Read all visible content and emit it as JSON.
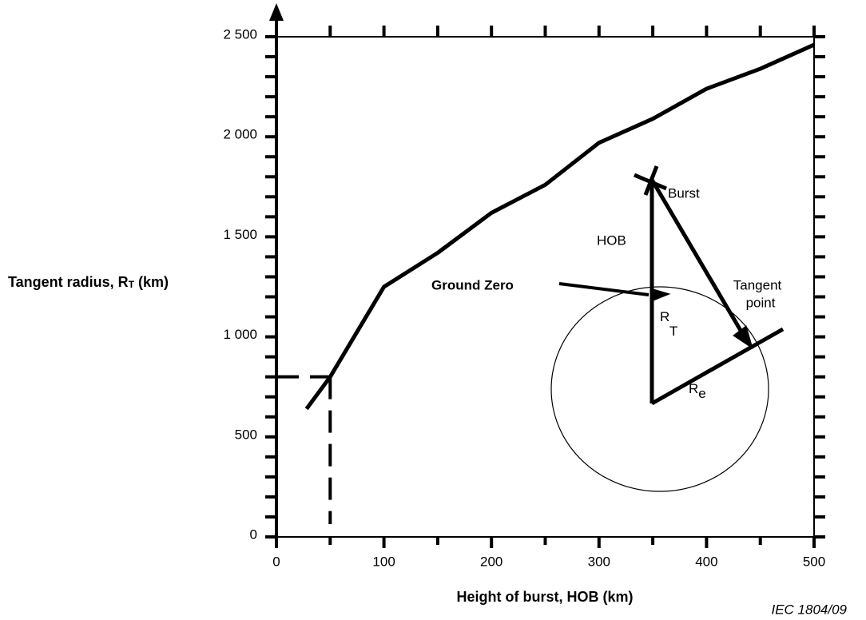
{
  "chart_data": {
    "type": "line",
    "y_label": [
      "Tangent radius, R",
      "T",
      " (km)"
    ],
    "x_label": "Height of burst, HOB (km)",
    "footer": "IEC   1804/09",
    "x": [
      28,
      50,
      100,
      150,
      200,
      250,
      300,
      350,
      400,
      450,
      500
    ],
    "values": [
      640,
      800,
      1250,
      1420,
      1620,
      1760,
      1970,
      2090,
      2240,
      2340,
      2460
    ],
    "color": "#000000",
    "xlim": [
      0,
      500
    ],
    "ylim": [
      0,
      2500
    ],
    "xticks": [
      0,
      100,
      200,
      300,
      400,
      500
    ],
    "xminorticks": [
      50,
      150,
      250,
      350,
      450
    ],
    "yticks": [
      0,
      500,
      {
        "value": 1000,
        "label": "1 000"
      },
      {
        "value": 1500,
        "label": "1 500"
      },
      {
        "value": 2000,
        "label": "2 000"
      },
      {
        "value": 2500,
        "label": "2 500"
      }
    ],
    "yminorticks": [
      100,
      200,
      300,
      400,
      600,
      700,
      800,
      900,
      1100,
      1200,
      1300,
      1400,
      1600,
      1700,
      1800,
      1900,
      2100,
      2200,
      2300,
      2400
    ],
    "reference": {
      "x": 50,
      "y": 800
    },
    "annotations": {
      "burst": "Burst",
      "hob": "HOB",
      "ground_zero": "Ground Zero",
      "rt": [
        "R",
        "T"
      ],
      "tangent_point": [
        "Tangent",
        "point"
      ],
      "re": [
        "R",
        "e"
      ]
    }
  }
}
